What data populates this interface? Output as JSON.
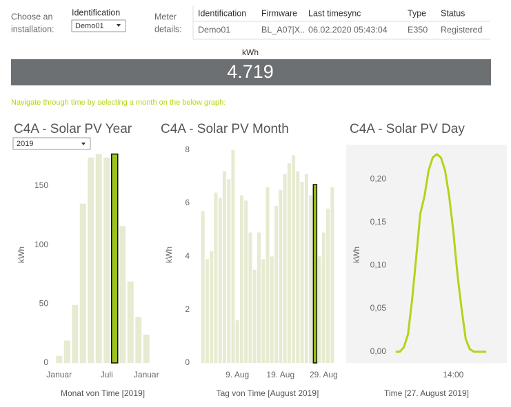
{
  "controls": {
    "installation_label": [
      "Choose an",
      "installation:"
    ],
    "identification_label": "Identification",
    "identification_value": "Demo01",
    "meter_label": [
      "Meter",
      "details:"
    ]
  },
  "meter_table": {
    "headers": [
      "Identification",
      "Firmware",
      "Last timesync",
      "Type",
      "Status"
    ],
    "rows": [
      [
        "Demo01",
        "BL_A07|X..",
        "06.02.2020 05:43:04",
        "E350",
        "Registered"
      ]
    ]
  },
  "kpi": {
    "label": "kWh",
    "value": "4.719"
  },
  "instruction": "Navigate through time by selecting a month on the below graph:",
  "year_selector": "2019",
  "chart_data": [
    {
      "type": "bar",
      "title": "C4A - Solar PV Year",
      "ylabel": "kWh",
      "xlabel": "Monat von Time [2019]",
      "categories": [
        "Januar",
        null,
        null,
        null,
        null,
        null,
        "Juli",
        null,
        null,
        null,
        null,
        "Januar"
      ],
      "values": [
        6,
        19,
        49,
        135,
        174,
        177,
        174,
        177,
        116,
        69,
        39,
        24
      ],
      "color": "#e6ebd1",
      "highlight_index": 7,
      "highlight_color": "#9cc31c",
      "ylim": [
        0,
        185
      ],
      "yticks": [
        0,
        50,
        100,
        150
      ],
      "grid": false
    },
    {
      "type": "bar",
      "title": "C4A - Solar PV Month",
      "ylabel": "kWh",
      "xlabel": "Tag von Time [August 2019]",
      "categories": [
        null,
        null,
        null,
        null,
        null,
        null,
        null,
        null,
        "9. Aug",
        null,
        null,
        null,
        null,
        null,
        null,
        null,
        null,
        null,
        "19. Aug",
        null,
        null,
        null,
        null,
        null,
        null,
        null,
        null,
        null,
        "29. Aug",
        null,
        null
      ],
      "values": [
        5.7,
        3.9,
        4.2,
        6.4,
        6.2,
        7.2,
        6.9,
        8.0,
        1.6,
        6.3,
        6.1,
        4.9,
        3.5,
        4.9,
        3.9,
        6.6,
        4.0,
        5.9,
        6.5,
        7.1,
        7.5,
        7.8,
        7.2,
        6.8,
        7.1,
        6.3,
        6.7,
        4.0,
        4.9,
        5.8,
        6.6
      ],
      "color": "#e6ebd1",
      "highlight_index": 26,
      "highlight_color": "#9cc31c",
      "ylim": [
        0,
        8.2
      ],
      "yticks": [
        0,
        2,
        4,
        6,
        8
      ],
      "grid": false
    },
    {
      "type": "line",
      "title": "C4A - Solar PV Day",
      "ylabel": "kWh",
      "xlabel": "Time [27. August 2019]",
      "x": [
        7,
        7.5,
        8,
        8.5,
        9,
        9.5,
        10,
        10.5,
        11,
        11.5,
        12,
        12.5,
        13,
        13.5,
        14,
        14.5,
        15,
        15.5,
        16,
        16.5,
        17,
        17.5,
        18
      ],
      "values": [
        0,
        0,
        0.005,
        0.02,
        0.06,
        0.11,
        0.16,
        0.18,
        0.21,
        0.225,
        0.229,
        0.225,
        0.21,
        0.18,
        0.14,
        0.09,
        0.05,
        0.015,
        0.003,
        0,
        0,
        0,
        0
      ],
      "color": "#b5d21a",
      "xlim": [
        1,
        20.5
      ],
      "xticks": [
        {
          "value": 14,
          "label": "14:00"
        }
      ],
      "ylim": [
        -0.013,
        0.24
      ],
      "yticks": [
        {
          "value": 0,
          "label": "0,00"
        },
        {
          "value": 0.05,
          "label": "0,05"
        },
        {
          "value": 0.1,
          "label": "0,10"
        },
        {
          "value": 0.15,
          "label": "0,15"
        },
        {
          "value": 0.2,
          "label": "0,20"
        }
      ],
      "grid": false
    }
  ]
}
